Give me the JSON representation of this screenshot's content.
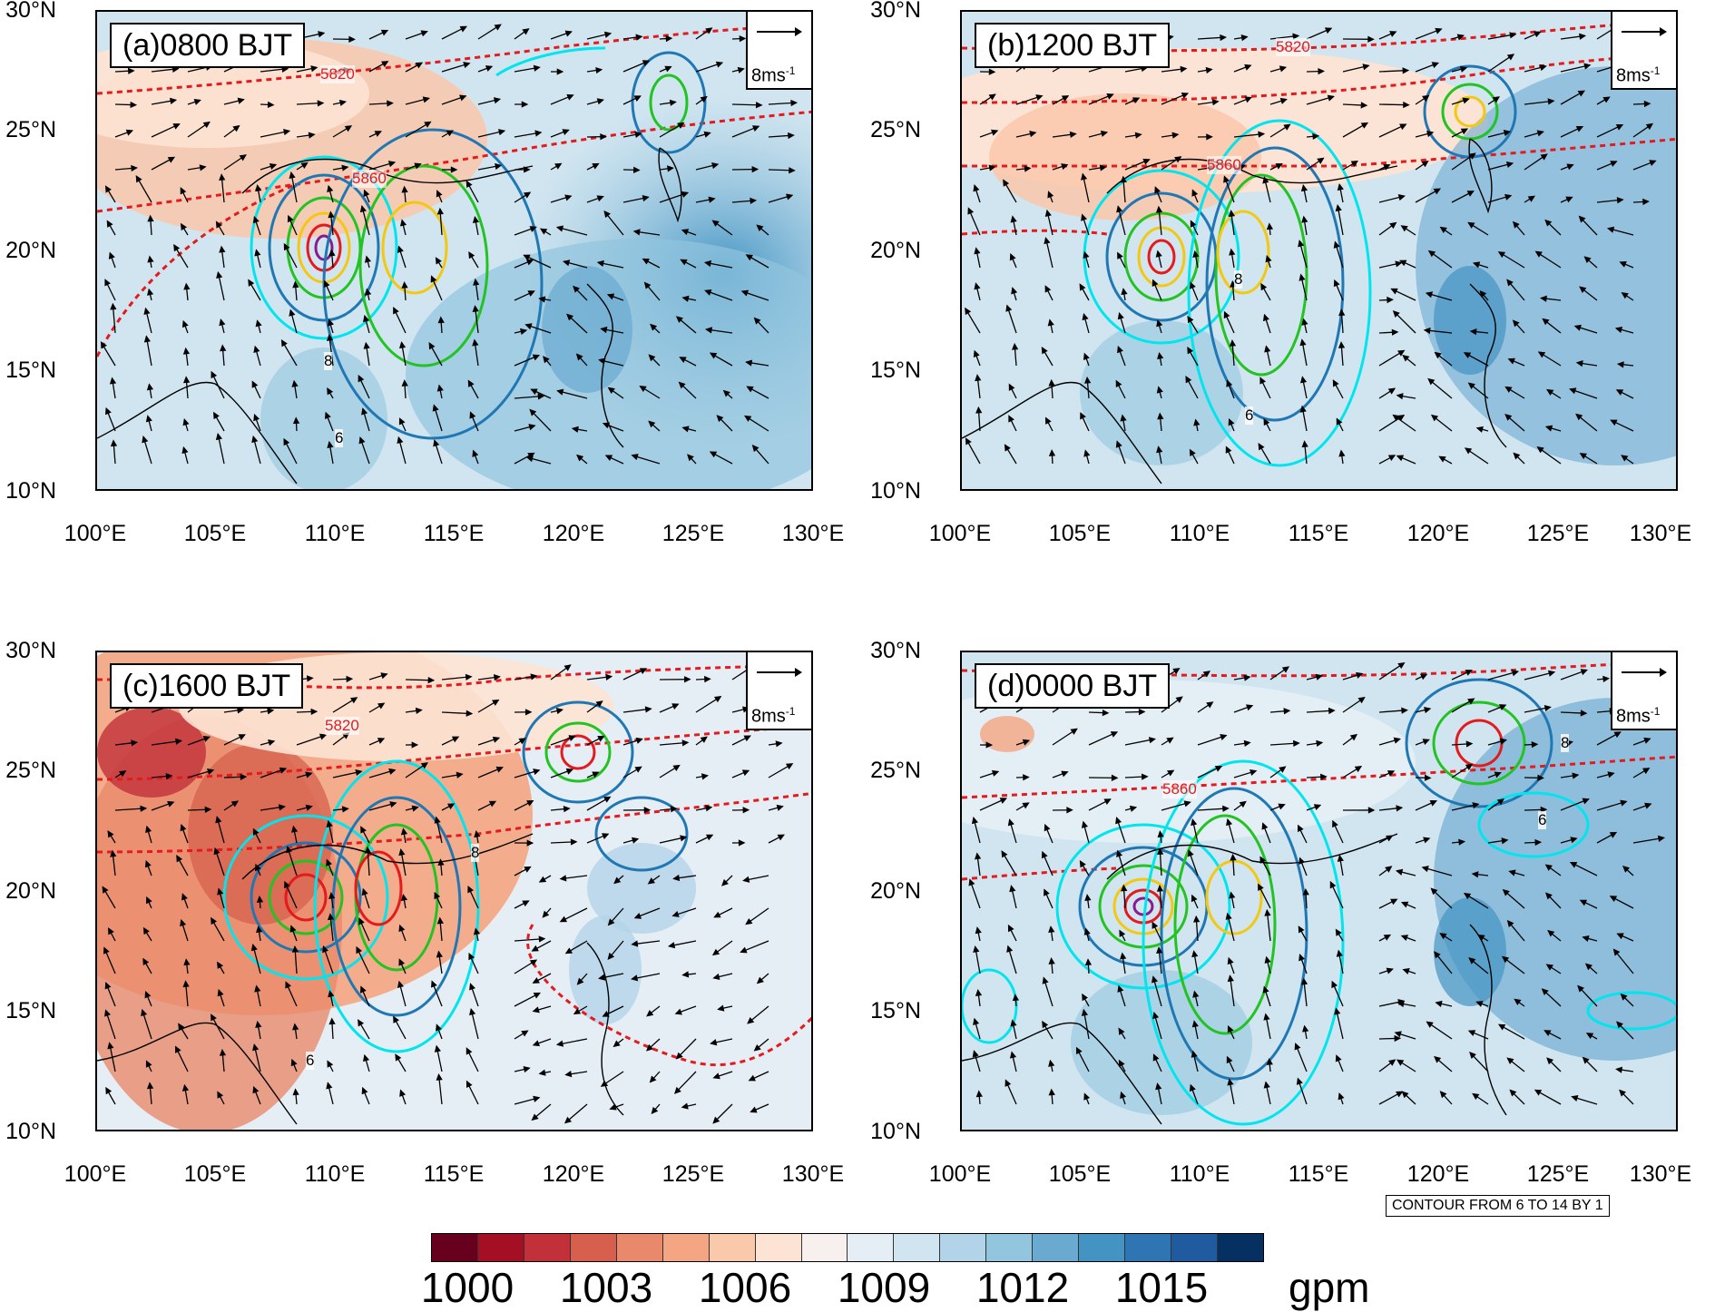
{
  "panels": [
    {
      "id": "a",
      "label": "(a)0800 BJT",
      "contour_labels": [
        "5820",
        "5860"
      ]
    },
    {
      "id": "b",
      "label": "(b)1200 BJT",
      "contour_labels": [
        "5820",
        "5860"
      ]
    },
    {
      "id": "c",
      "label": "(c)1600 BJT",
      "contour_labels": [
        "5820"
      ]
    },
    {
      "id": "d",
      "label": "(d)0000 BJT",
      "contour_labels": [
        "5860"
      ]
    }
  ],
  "y_ticks": [
    "30°N",
    "25°N",
    "20°N",
    "15°N",
    "10°N"
  ],
  "x_ticks": [
    "100°E",
    "105°E",
    "110°E",
    "115°E",
    "120°E",
    "125°E",
    "130°E"
  ],
  "reference_vector": {
    "label": "8ms",
    "superscript": "-1"
  },
  "contour_note": "CONTOUR FROM 6 TO 14 BY 1",
  "colorbar": {
    "ticks": [
      "1000",
      "1003",
      "1006",
      "1009",
      "1012",
      "1015"
    ],
    "unit": "gpm",
    "colors": [
      "#67001f",
      "#a50f24",
      "#c2303a",
      "#d6604d",
      "#e8896b",
      "#f4a582",
      "#fac8aa",
      "#fde3d3",
      "#f7f0ee",
      "#e6eef5",
      "#d1e5f0",
      "#b3d3e8",
      "#92c5de",
      "#6aa9d0",
      "#4393c3",
      "#2f74b3",
      "#1f5b9e",
      "#053061"
    ]
  },
  "line_labels": {
    "inner": "8",
    "outer": "6"
  }
}
